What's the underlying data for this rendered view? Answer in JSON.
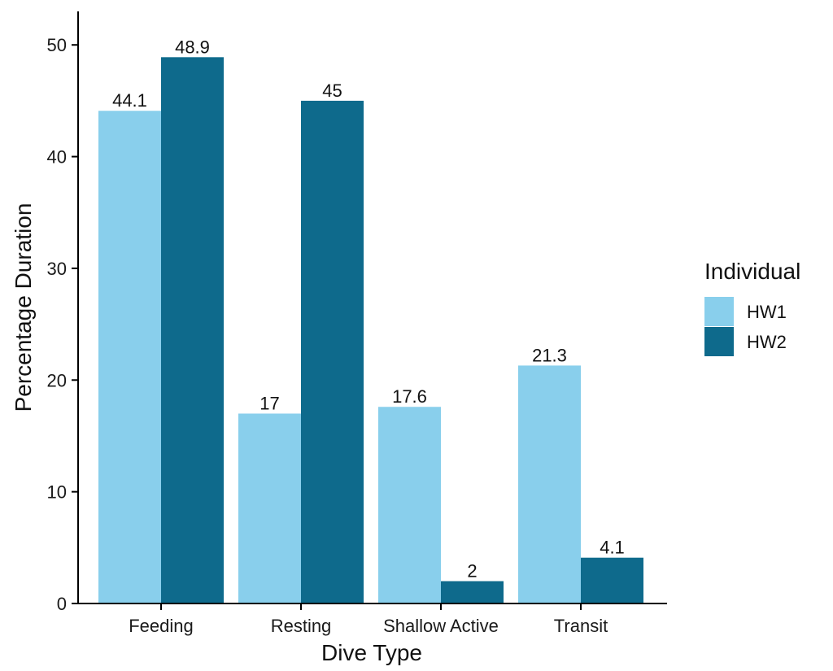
{
  "chart_data": {
    "type": "bar",
    "title": "",
    "xlabel": "Dive Type",
    "ylabel": "Percentage Duration",
    "categories": [
      "Feeding",
      "Resting",
      "Shallow Active",
      "Transit"
    ],
    "series": [
      {
        "name": "HW1",
        "values": [
          44.1,
          17,
          17.6,
          21.3
        ],
        "color": "#89cfec",
        "labels": [
          "44.1",
          "17",
          "17.6",
          "21.3"
        ]
      },
      {
        "name": "HW2",
        "values": [
          48.9,
          45,
          2,
          4.1
        ],
        "color": "#0e6a8c",
        "labels": [
          "48.9",
          "45",
          "2",
          "4.1"
        ]
      }
    ],
    "yticks": [
      0,
      10,
      20,
      30,
      40,
      50
    ],
    "ylim": [
      0,
      53
    ],
    "grid": false,
    "legend": {
      "title": "Individual",
      "position": "right"
    }
  }
}
